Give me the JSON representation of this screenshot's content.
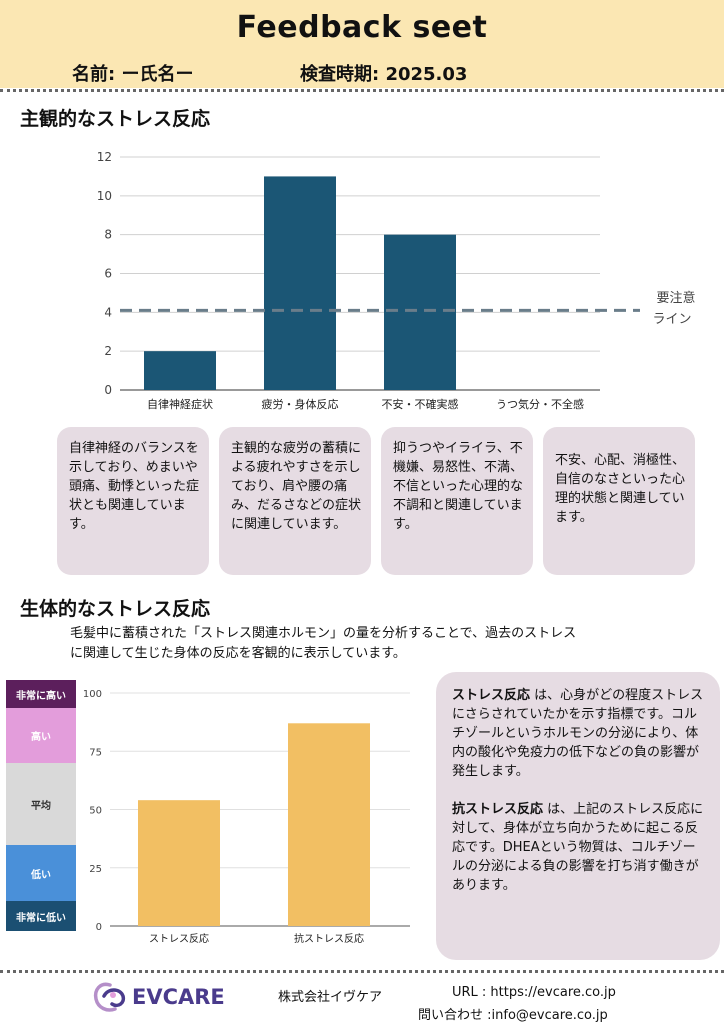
{
  "header": {
    "title": "Feedback seet",
    "name_label": "名前: ー氏名ー",
    "date_label": "検査時期: 2025.03"
  },
  "section1": {
    "title": "主観的なストレス反応"
  },
  "chart_data": [
    {
      "type": "bar",
      "title": "主観的なストレス反応",
      "categories": [
        "自律神経症状",
        "疲労・身体反応",
        "不安・不確実感",
        "うつ気分・不全感"
      ],
      "values": [
        2,
        11,
        8,
        0
      ],
      "ylim": [
        0,
        12
      ],
      "yticks": [
        0,
        2,
        4,
        6,
        8,
        10,
        12
      ],
      "grid": true,
      "bar_color": "#1b5675",
      "reference_line": {
        "value": 4.1,
        "label_line1": "要注意",
        "label_line2": "ライン",
        "color": "#6a7d8a"
      }
    },
    {
      "type": "bar",
      "title": "生体的なストレス反応",
      "categories": [
        "ストレス反応",
        "抗ストレス反応"
      ],
      "values": [
        54,
        87
      ],
      "ylim": [
        0,
        100
      ],
      "yticks": [
        0,
        25,
        50,
        75,
        100
      ],
      "grid": true,
      "bar_color": "#f2bf63"
    }
  ],
  "descriptions": [
    "自律神経のバランスを示しており、めまいや頭痛、動悸といった症状とも関連しています。",
    "主観的な疲労の蓄積による疲れやすさを示しており、肩や腰の痛み、だるさなどの症状に関連しています。",
    "抑うつやイライラ、不機嫌、易怒性、不満、不信といった心理的な不調和と関連しています。",
    "不安、心配、消極性、自信のなさといった心理的状態と関連しています。"
  ],
  "section2": {
    "title": "生体的なストレス反応",
    "intro_line1": "毛髪中に蓄積された「ストレス関連ホルモン」の量を分析することで、過去のストレス",
    "intro_line2": "に関連して生じた身体の反応を客観的に表示しています。"
  },
  "levels": [
    {
      "label": "非常に高い",
      "color": "#5c1f5c",
      "text_color": "#ffffff"
    },
    {
      "label": "高い",
      "color": "#e39ddb",
      "text_color": "#ffffff"
    },
    {
      "label": "平均",
      "color": "#d9d9d9",
      "text_color": "#333333"
    },
    {
      "label": "低い",
      "color": "#4a90d9",
      "text_color": "#ffffff"
    },
    {
      "label": "非常に低い",
      "color": "#1b4f72",
      "text_color": "#ffffff"
    }
  ],
  "info": {
    "p1_term": "ストレス反応",
    "p1_text": " は、心身がどの程度ストレスにさらされていたかを示す指標です。コルチゾールというホルモンの分泌により、体内の酸化や免疫力の低下などの負の影響が発生します。",
    "p2_term": "抗ストレス反応",
    "p2_text": " は、上記のストレス反応に対して、身体が立ち向かうために起こる反応です。DHEAという物質は、コルチゾールの分泌による負の影響を打ち消す働きがあります。"
  },
  "footer": {
    "logo_text": "EVCARE",
    "company": "株式会社イヴケア",
    "url": "URL : https://evcare.co.jp",
    "contact": "問い合わせ :info@evcare.co.jp"
  }
}
